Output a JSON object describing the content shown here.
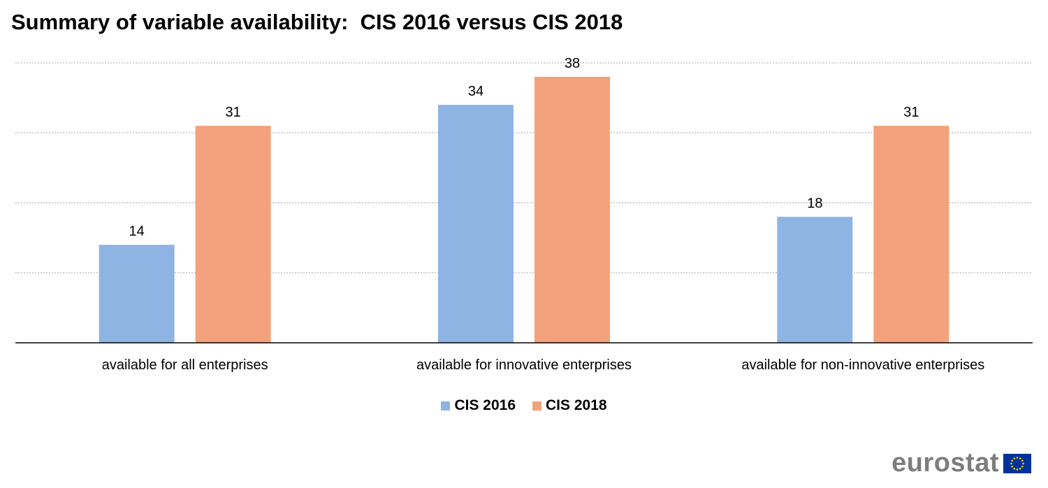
{
  "chart_data": {
    "type": "bar",
    "title": "Summary of variable availability:  CIS 2016 versus CIS 2018",
    "categories": [
      "available for all enterprises",
      "available for innovative enterprises",
      "available for non-innovative enterprises"
    ],
    "series": [
      {
        "name": "CIS 2016",
        "values": [
          14,
          34,
          18
        ],
        "color": "#8eb4e3"
      },
      {
        "name": "CIS 2018",
        "values": [
          31,
          38,
          31
        ],
        "color": "#f4a27b"
      }
    ],
    "ylim": [
      0,
      40
    ],
    "grid": true,
    "legend_position": "bottom"
  },
  "branding": {
    "logo_text": "eurostat",
    "flag_color": "#003399",
    "star_color": "#ffcc00"
  }
}
